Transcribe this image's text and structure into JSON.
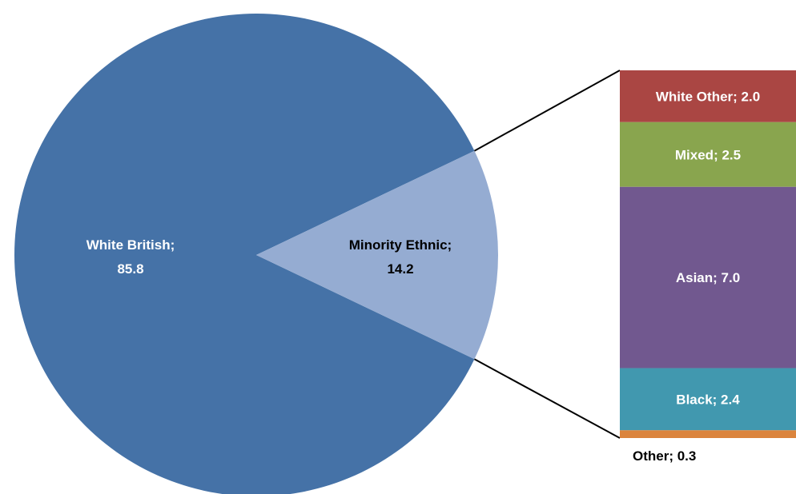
{
  "chart_data": {
    "type": "bar-of-pie",
    "pie": {
      "slices": [
        {
          "label": "White British",
          "value": 85.8,
          "display": "White British;",
          "value_text": "85.8",
          "color": "#4572A7",
          "text_color": "#ffffff"
        },
        {
          "label": "Minority Ethnic",
          "value": 14.2,
          "display": "Minority Ethnic;",
          "value_text": "14.2",
          "color": "#95ACD2",
          "text_color": "#000000"
        }
      ]
    },
    "bar": {
      "of": "Minority Ethnic",
      "segments": [
        {
          "label": "White Other",
          "value": 2.0,
          "display": "White Other;  2.0",
          "color": "#AA4643",
          "text_color": "#ffffff"
        },
        {
          "label": "Mixed",
          "value": 2.5,
          "display": "Mixed; 2.5",
          "color": "#89A54E",
          "text_color": "#ffffff"
        },
        {
          "label": "Asian",
          "value": 7.0,
          "display": "Asian; 7.0",
          "color": "#71588F",
          "text_color": "#ffffff"
        },
        {
          "label": "Black",
          "value": 2.4,
          "display": "Black; 2.4",
          "color": "#4198AF",
          "text_color": "#ffffff"
        },
        {
          "label": "Other",
          "value": 0.3,
          "display": "Other; 0.3",
          "color": "#DB843D",
          "text_color": "#000000"
        }
      ]
    },
    "connector_color": "#000000"
  }
}
